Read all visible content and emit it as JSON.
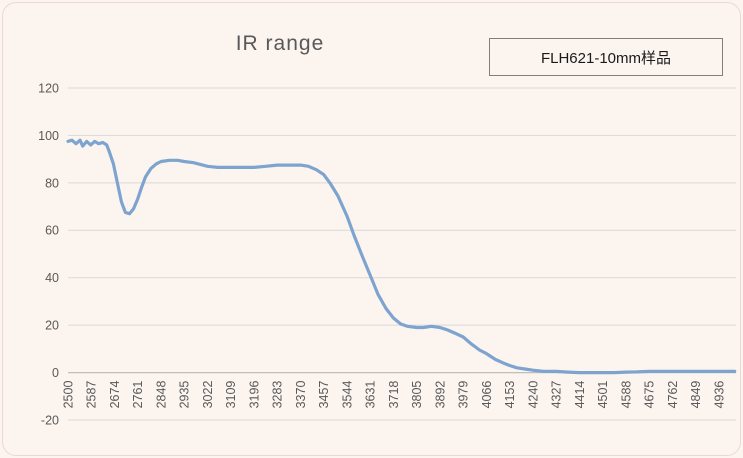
{
  "page": {
    "background": "#fcf4ef"
  },
  "header": {
    "title": "IR  range",
    "legend_label": "FLH621-10mm样品"
  },
  "chart_data": {
    "type": "line",
    "title": "IR range",
    "legend": [
      "FLH621-10mm样品"
    ],
    "legend_position": "top-right",
    "grid": true,
    "xlim": [
      2500,
      5000
    ],
    "ylim": [
      -20,
      120
    ],
    "y_ticks": [
      120,
      100,
      80,
      60,
      40,
      20,
      0,
      -20
    ],
    "x_tick_labels": [
      2500,
      2587,
      2674,
      2761,
      2848,
      2935,
      3022,
      3109,
      3196,
      3283,
      3370,
      3457,
      3544,
      3631,
      3718,
      3805,
      3892,
      3979,
      4066,
      4153,
      4240,
      4327,
      4414,
      4501,
      4588,
      4675,
      4762,
      4849,
      4936
    ],
    "x_axis_cross_at": 0,
    "colors": {
      "line": "#7da4ce",
      "grid": "#d9d9d9",
      "axis": "#bfbfbf",
      "tick_text": "#595959",
      "background": "#fcf4ef"
    },
    "series": [
      {
        "name": "FLH621-10mm样品",
        "color": "#7da4ce",
        "points": [
          [
            2500,
            97.5
          ],
          [
            2515,
            98
          ],
          [
            2530,
            96.5
          ],
          [
            2545,
            98
          ],
          [
            2555,
            95.5
          ],
          [
            2570,
            97.5
          ],
          [
            2585,
            96
          ],
          [
            2600,
            97.5
          ],
          [
            2615,
            96.5
          ],
          [
            2630,
            97
          ],
          [
            2645,
            96
          ],
          [
            2655,
            93
          ],
          [
            2670,
            88
          ],
          [
            2685,
            80
          ],
          [
            2700,
            72
          ],
          [
            2715,
            67.5
          ],
          [
            2730,
            67
          ],
          [
            2745,
            69
          ],
          [
            2760,
            73
          ],
          [
            2775,
            78
          ],
          [
            2790,
            82.5
          ],
          [
            2810,
            86
          ],
          [
            2830,
            88
          ],
          [
            2848,
            89
          ],
          [
            2880,
            89.5
          ],
          [
            2910,
            89.5
          ],
          [
            2935,
            89
          ],
          [
            2970,
            88.5
          ],
          [
            3022,
            87
          ],
          [
            3060,
            86.5
          ],
          [
            3109,
            86.5
          ],
          [
            3150,
            86.5
          ],
          [
            3196,
            86.5
          ],
          [
            3240,
            87
          ],
          [
            3283,
            87.5
          ],
          [
            3320,
            87.5
          ],
          [
            3370,
            87.5
          ],
          [
            3400,
            87
          ],
          [
            3430,
            85.5
          ],
          [
            3457,
            83.5
          ],
          [
            3480,
            80
          ],
          [
            3510,
            74.5
          ],
          [
            3544,
            66
          ],
          [
            3570,
            58
          ],
          [
            3600,
            49.5
          ],
          [
            3631,
            41
          ],
          [
            3660,
            33
          ],
          [
            3690,
            27
          ],
          [
            3718,
            23
          ],
          [
            3745,
            20.5
          ],
          [
            3770,
            19.5
          ],
          [
            3805,
            19
          ],
          [
            3830,
            19
          ],
          [
            3860,
            19.5
          ],
          [
            3892,
            19
          ],
          [
            3920,
            18
          ],
          [
            3950,
            16.5
          ],
          [
            3979,
            15
          ],
          [
            4010,
            12
          ],
          [
            4040,
            9.5
          ],
          [
            4066,
            8
          ],
          [
            4100,
            5.5
          ],
          [
            4130,
            4
          ],
          [
            4153,
            3
          ],
          [
            4180,
            2
          ],
          [
            4210,
            1.5
          ],
          [
            4240,
            1
          ],
          [
            4280,
            0.5
          ],
          [
            4327,
            0.5
          ],
          [
            4370,
            0.2
          ],
          [
            4414,
            0
          ],
          [
            4460,
            0
          ],
          [
            4501,
            0
          ],
          [
            4544,
            0
          ],
          [
            4588,
            0.2
          ],
          [
            4630,
            0.3
          ],
          [
            4675,
            0.5
          ],
          [
            4720,
            0.5
          ],
          [
            4762,
            0.5
          ],
          [
            4800,
            0.5
          ],
          [
            4849,
            0.5
          ],
          [
            4890,
            0.5
          ],
          [
            4936,
            0.5
          ],
          [
            4995,
            0.5
          ]
        ]
      }
    ]
  }
}
